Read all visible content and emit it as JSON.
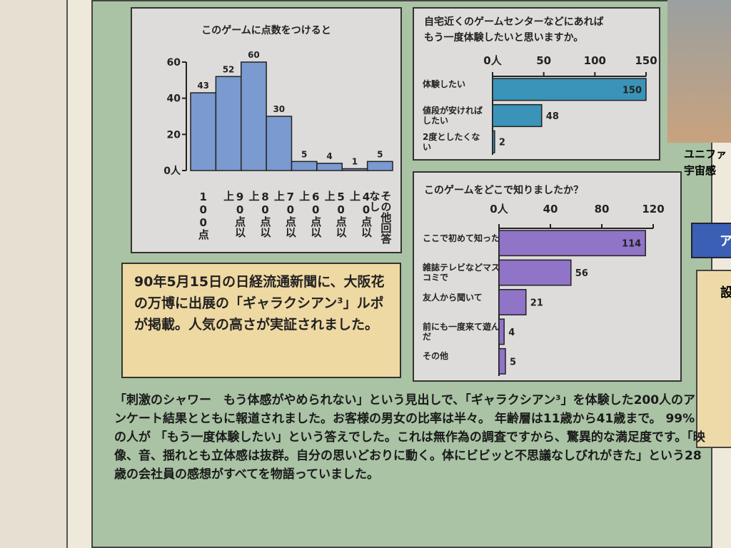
{
  "chart_data": [
    {
      "type": "bar",
      "title": "このゲームに点数をつけると",
      "categories": [
        "100点",
        "90点以上",
        "80点以上",
        "70点以上",
        "60点以上",
        "50点以上",
        "40点以上",
        "その他回答なし"
      ],
      "values": [
        43,
        52,
        60,
        30,
        5,
        4,
        1,
        5
      ],
      "color": "#7a9ad0",
      "ylim": [
        0,
        60
      ],
      "yticks": [
        {
          "value": 0,
          "label": "0人"
        },
        20,
        40,
        60
      ]
    },
    {
      "type": "hbar",
      "title": "自宅近くのゲームセンターなどにあれば\nもう一度体験したいと思いますか。",
      "categories": [
        "体験したい",
        "値段が安ければしたい",
        "2度としたくない"
      ],
      "values": [
        150,
        48,
        2
      ],
      "color": "#3a93b8",
      "xlim": [
        0,
        150
      ],
      "xticks": [
        {
          "value": 0,
          "label": "0人"
        },
        50,
        100,
        150
      ]
    },
    {
      "type": "hbar",
      "title": "このゲームをどこで知りましたか？",
      "categories": [
        "ここで初めて知った",
        "雑誌テレビなどマスコミで",
        "友人から聞いて",
        "前にも一度来て遊んだ",
        "その他"
      ],
      "values": [
        114,
        56,
        21,
        4,
        5
      ],
      "color": "#8f74c8",
      "xlim": [
        0,
        120
      ],
      "xticks": [
        {
          "value": 0,
          "label": "0人"
        },
        40,
        80,
        120
      ]
    }
  ],
  "callout": "90年5月15日の日経流通新聞に、大阪花の万博に出展の「ギャラクシアン³」ルポが掲載。人気の高さが実証されました。",
  "body": "「刺激のシャワー　もう体感がやめられない」という見出しで、「ギャラクシアン³」を体験した200人のアンケート結果とともに報道されました。お客様の男女の比率は半々。 年齢層は11歳から41歳まで。 99%の人が 「もう一度体験したい」という答えでした。これは無作為の調査ですから、驚異的な満足度です。「映像、音、揺れとも立体感は抜群。自分の思いどおりに動く。体にビビッと不思議なしびれがきた」という28歳の会社員の感想がすべてを物語っていました。",
  "side": [
    "ユニファ",
    "宇宙感",
    "ア",
    "設"
  ]
}
